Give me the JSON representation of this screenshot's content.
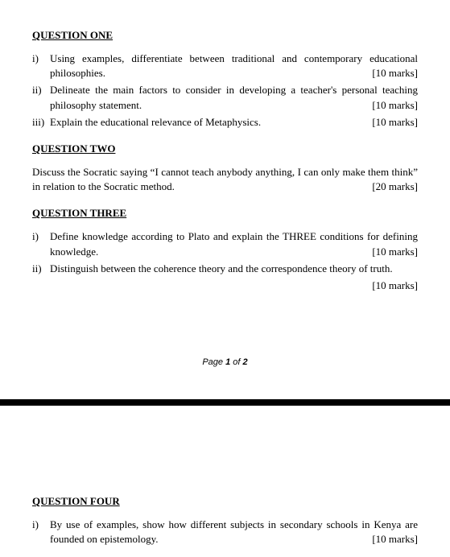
{
  "q1": {
    "heading": "QUESTION ONE",
    "items": [
      {
        "marker": "i)",
        "text": "Using examples, differentiate between traditional and contemporary educational philosophies.",
        "marks": "[10 marks]"
      },
      {
        "marker": "ii)",
        "text": "Delineate the main factors to consider in developing a teacher's personal teaching philosophy statement.",
        "marks": "[10 marks]"
      },
      {
        "marker": "iii)",
        "text": "Explain the educational relevance of Metaphysics.",
        "marks": "[10 marks]"
      }
    ]
  },
  "q2": {
    "heading": "QUESTION TWO",
    "text": "Discuss the Socratic saying “I cannot teach anybody anything, I can only make them think” in relation to the Socratic method.",
    "marks": "[20 marks]"
  },
  "q3": {
    "heading": "QUESTION THREE",
    "items": [
      {
        "marker": "i)",
        "text": "Define knowledge according to Plato and explain the THREE conditions for defining knowledge.",
        "marks": "[10 marks]"
      },
      {
        "marker": "ii)",
        "text": "Distinguish between the coherence theory and the correspondence theory of truth.",
        "marks": "[10 marks]"
      }
    ]
  },
  "pagenum": {
    "pre": "Page ",
    "cur": "1",
    "mid": " of ",
    "total": "2"
  },
  "q4": {
    "heading": "QUESTION FOUR",
    "items": [
      {
        "marker": "i)",
        "text": "By use of examples, show how different subjects in secondary schools in Kenya are founded on epistemology.",
        "marks": "[10 marks]"
      }
    ]
  }
}
